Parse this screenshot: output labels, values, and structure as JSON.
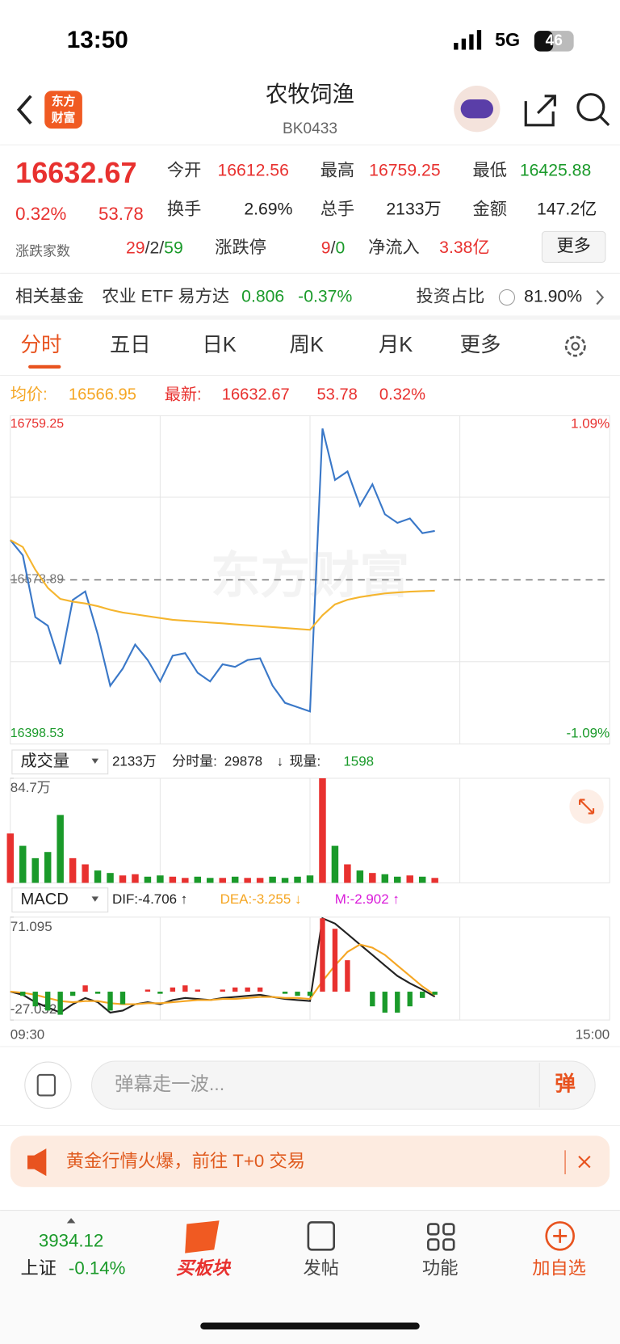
{
  "status": {
    "time": "13:50",
    "network": "5G",
    "battery": "46"
  },
  "header": {
    "logo_top": "东方",
    "logo_bottom": "财富",
    "title": "农牧饲渔",
    "code": "BK0433"
  },
  "quote": {
    "price": "16632.67",
    "pct": "0.32%",
    "change": "53.78",
    "stats": [
      {
        "label": "今开",
        "value": "16612.56"
      },
      {
        "label": "最高",
        "value": "16759.25"
      },
      {
        "label": "最低",
        "value": "16425.88"
      },
      {
        "label": "换手",
        "value": "2.69%"
      },
      {
        "label": "总手",
        "value": "2133万"
      },
      {
        "label": "金额",
        "value": "147.2亿"
      }
    ],
    "breadth_label": "涨跌家数",
    "breadth_up": "29",
    "breadth_flat": "2",
    "breadth_down": "59",
    "sep": "/",
    "limit_label": "涨跌停",
    "limit_up": "9",
    "limit_down": "0",
    "inflow_label": "净流入",
    "inflow": "3.38亿",
    "more": "更多"
  },
  "fund": {
    "label": "相关基金",
    "name": "农业 ETF 易方达",
    "price": "0.806",
    "pct": "-0.37%",
    "ratio_label": "投资占比",
    "ratio": "81.90%"
  },
  "tabs": [
    "分时",
    "五日",
    "日K",
    "周K",
    "月K",
    "更多"
  ],
  "info": {
    "avg_label": "均价:",
    "avg": "16566.95",
    "latest_label": "最新:",
    "latest": "16632.67",
    "change": "53.78",
    "pct": "0.32%"
  },
  "volume_header": {
    "selector": "成交量",
    "total": "2133万",
    "minute_label": "分时量:",
    "minute": "29878",
    "arrow": "↓",
    "now_label": "现量:",
    "now": "1598"
  },
  "macd_header": {
    "selector": "MACD",
    "dif": "DIF:-4.706 ↑",
    "dea": "DEA:-3.255 ↓",
    "m": "M:-2.902 ↑"
  },
  "time_axis": [
    "09:30",
    "15:00"
  ],
  "chart_data": [
    {
      "type": "line",
      "watermark": "东方财富",
      "ylim": [
        16398.53,
        16759.25
      ],
      "yticks": [
        16398.53,
        16578.89,
        16759.25
      ],
      "y2lim": [
        -1.09,
        1.09
      ],
      "y2ticks": [
        {
          "value": -1.09,
          "label": "-1.09%"
        },
        {
          "value": 1.09,
          "label": "1.09%"
        }
      ],
      "series": [
        {
          "name": "最新",
          "color": "#3a78c8",
          "values": [
            16622.7,
            16605.7,
            16537.9,
            16528.5,
            16486.1,
            16556.8,
            16566.2,
            16519.1,
            16462.6,
            16481.4,
            16507.8,
            16490.8,
            16467.3,
            16495.5,
            16498.4,
            16476.7,
            16467.3,
            16486.1,
            16483.3,
            16490.8,
            16492.7,
            16462.6,
            16443.7,
            16439.0,
            16434.3,
            16745.1,
            16688.6,
            16698.0,
            16660.4,
            16683.9,
            16650.9,
            16641.5,
            16646.3,
            16630.2,
            16632.67
          ]
        },
        {
          "name": "均价",
          "color": "#f5b52e",
          "values": [
            16622.7,
            16615,
            16590,
            16570,
            16558,
            16555,
            16553,
            16550,
            16546,
            16543,
            16541,
            16539,
            16537,
            16535,
            16534,
            16533,
            16532,
            16531,
            16530,
            16529,
            16528,
            16527,
            16526,
            16525,
            16524,
            16540,
            16552,
            16557,
            16560,
            16562,
            16564,
            16565,
            16566,
            16566.5,
            16566.95
          ]
        }
      ]
    },
    {
      "type": "bar",
      "ylim": [
        0,
        84.7
      ],
      "yticks": [
        {
          "value": 84.7,
          "label": "84.7万"
        }
      ],
      "up_color": "#e8312f",
      "down_color": "#1a9a2a",
      "values": [
        40,
        30,
        20,
        25,
        55,
        20,
        15,
        10,
        8,
        6,
        7,
        5,
        6,
        5,
        4,
        5,
        4,
        4,
        5,
        4,
        4,
        5,
        4,
        5,
        6,
        84.7,
        30,
        15,
        10,
        8,
        7,
        5,
        6,
        5,
        4
      ]
    },
    {
      "type": "macd",
      "ylim": [
        -27.032,
        71.095
      ],
      "yticks": [
        -27.032,
        71.095
      ],
      "up_color": "#e8312f",
      "down_color": "#1a9a2a",
      "series": [
        {
          "name": "DIF",
          "color": "#222222",
          "values": [
            0,
            -3,
            -10,
            -15,
            -20,
            -12,
            -6,
            -10,
            -20,
            -18,
            -12,
            -10,
            -12,
            -8,
            -6,
            -7,
            -8,
            -6,
            -5,
            -4,
            -3,
            -5,
            -7,
            -8,
            -9,
            70,
            65,
            55,
            45,
            35,
            25,
            15,
            8,
            2,
            -4.706
          ]
        },
        {
          "name": "DEA",
          "color": "#f5a623",
          "values": [
            0,
            -1,
            -3,
            -6,
            -9,
            -10,
            -9,
            -9,
            -11,
            -12,
            -12,
            -11,
            -11,
            -10,
            -9,
            -8,
            -8,
            -7,
            -7,
            -6,
            -5,
            -5,
            -6,
            -6,
            -7,
            10,
            25,
            38,
            45,
            42,
            35,
            25,
            15,
            5,
            -3.255
          ]
        },
        {
          "name": "M",
          "values": [
            0,
            -4,
            -14,
            -18,
            -22,
            -4,
            6,
            -2,
            -18,
            -12,
            0,
            2,
            -2,
            4,
            6,
            2,
            0,
            2,
            4,
            4,
            4,
            0,
            -2,
            -4,
            -4,
            70,
            60,
            30,
            0,
            -14,
            -20,
            -20,
            -14,
            -6,
            -2.902
          ]
        }
      ]
    }
  ],
  "comment": {
    "placeholder": "弹幕走一波...",
    "badge": "弹"
  },
  "banner": {
    "text": "黄金行情火爆，前往 T+0 交易"
  },
  "nav": {
    "index_value": "3934.12",
    "index_name": "上证",
    "index_pct": "-0.14%",
    "items": [
      "买板块",
      "发帖",
      "功能",
      "加自选"
    ]
  }
}
